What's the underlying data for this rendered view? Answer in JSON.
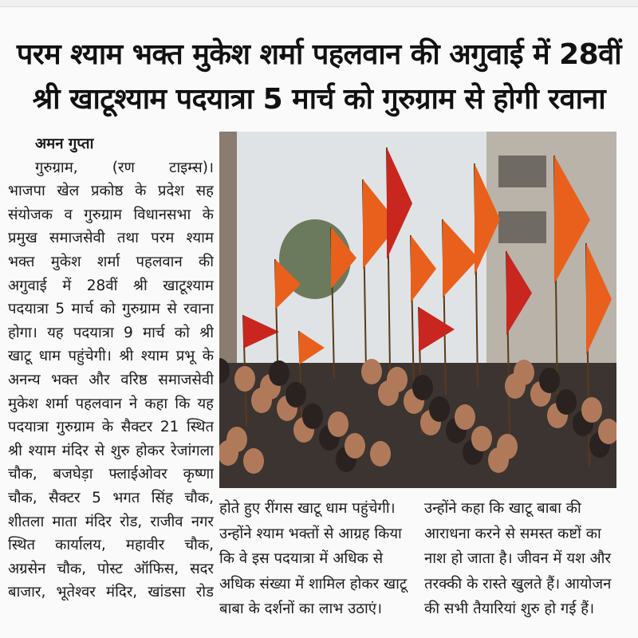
{
  "headline": {
    "line1": "परम श्याम भक्त मुकेश शर्मा पहलवान की अगुवाई में 28वीं",
    "line2": "श्री खाटूश्याम पदयात्रा 5 मार्च को गुरुग्राम से होगी रवाना"
  },
  "article": {
    "byline": "अमन गुप्ता",
    "dateline": "गुरुग्राम, (रण टाइम्स)।",
    "left_column": [
      "भाजपा खेल प्रकोष्ठ के प्रदेश सह",
      "संयोजक व गुरुग्राम विधानसभा के",
      "प्रमुख समाजसेवी तथा परम श्याम",
      "भक्त मुकेश शर्मा पहलवान की",
      "अगुवाई में 28वीं श्री खाटूश्याम",
      "पदयात्रा 5 मार्च को गुरुग्राम से रवाना",
      "होगा। यह पदयात्रा 9 मार्च को श्री",
      "खाटू धाम पहुंचेगी। श्री श्याम प्रभू के",
      "अनन्य भक्त और वरिष्ठ समाजसेवी",
      "मुकेश शर्मा पहलवान ने कहा कि यह",
      "पदयात्रा गुरुग्राम के सैक्टर 21 स्थित",
      "श्री श्याम मंदिर से शुरु होकर रेजांगला",
      "चौक, बजघेड़ा फ्लाईओवर कृष्णा",
      "चौक, सैक्टर 5 भगत सिंह चौक,",
      "शीतला माता मंदिर रोड, राजीव नगर",
      "स्थित कार्यालय, महावीर चौक,",
      "अग्रसेन चौक, पोस्ट ऑफिस, सदर",
      "बाजार, भूतेश्वर मंदिर, खांडसा रोड"
    ],
    "middle_column": [
      "होते हुए रींगस खाटू धाम पहुंचेगी।",
      "उन्होंने श्याम भक्तों से आग्रह किया",
      "कि वे इस पदयात्रा में अधिक से",
      "अधिक संख्या में शामिल होकर खाटू",
      "बाबा के दर्शनों का लाभ उठाएं।"
    ],
    "right_column": [
      "उन्होंने कहा कि खाटू बाबा की",
      "आराधना करने से समस्त कष्टों का",
      "नाश हो जाता है। जीवन में यश और",
      "तरक्की के रास्ते खुलते हैं। आयोजन",
      "की सभी तैयारियां शुरु हो गई हैं।"
    ]
  },
  "photo": {
    "subject": "padyatra-procession-with-saffron-flags",
    "colors": {
      "flag": "#e8601c",
      "flag_red": "#c8261e",
      "sky": "#dfe3e6"
    }
  }
}
